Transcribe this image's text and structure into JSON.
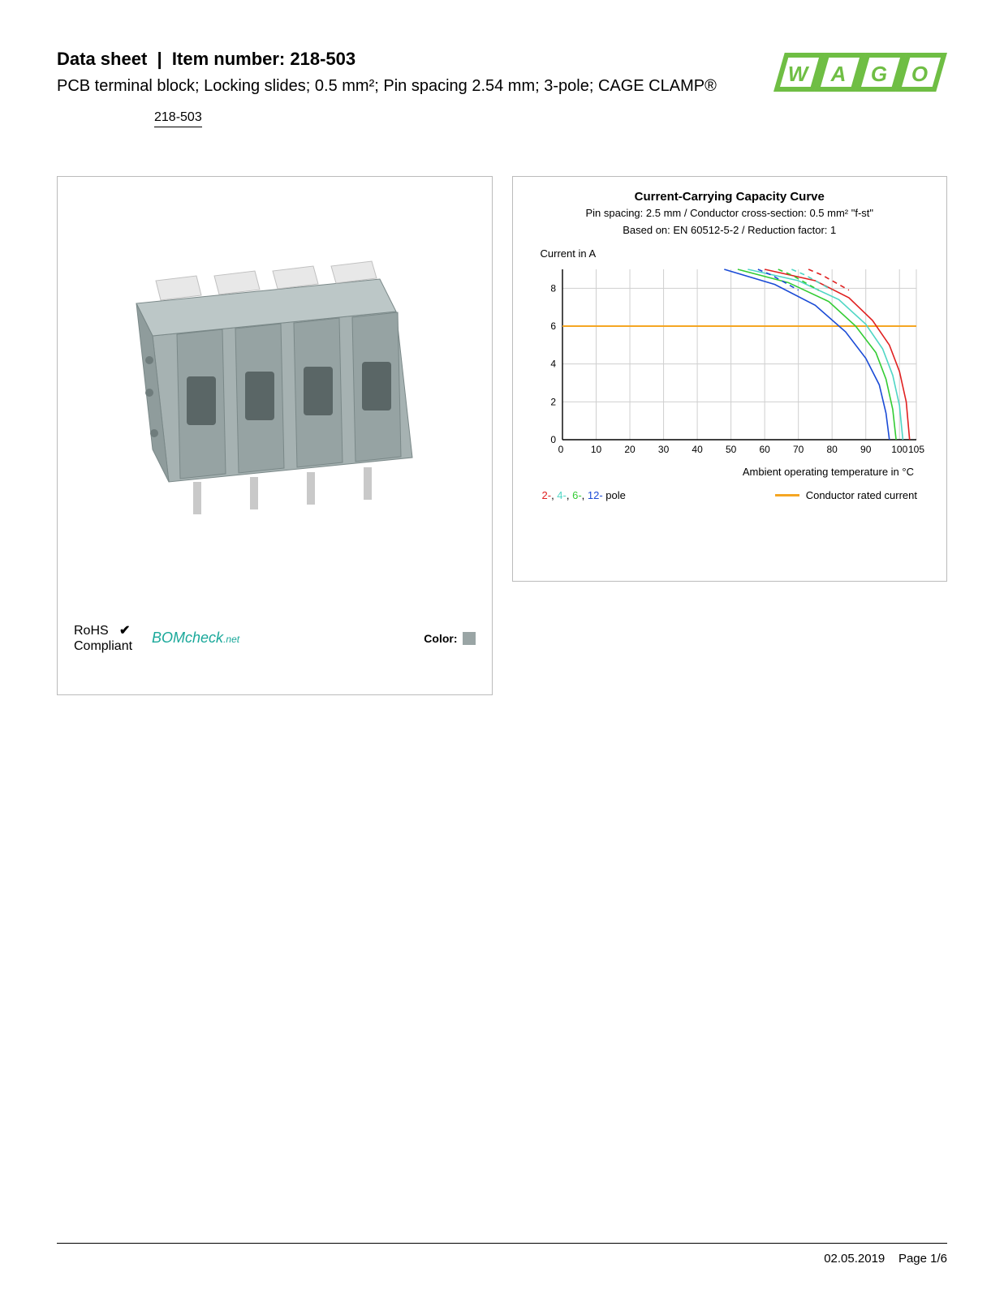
{
  "header": {
    "title_prefix": "Data sheet",
    "title_sep": "|",
    "title_item_label": "Item number:",
    "item_number": "218-503",
    "subtitle": "PCB terminal block; Locking slides; 0.5 mm²; Pin spacing 2.54 mm; 3-pole; CAGE CLAMP®",
    "item_code": "218-503"
  },
  "logo": {
    "text": "WAGO",
    "color": "#6fbe44",
    "accent": "#6fbe44"
  },
  "product_image": {
    "body_color": "#a6b2b2",
    "lever_color": "#e8e8e8",
    "pin_color": "#c9c9c9"
  },
  "compliance": {
    "rohs_line1": "RoHS",
    "rohs_line2": "Compliant",
    "check_color": "#000000",
    "bomcheck_main": "BOMcheck",
    "bomcheck_sub": ".net",
    "bomcheck_color": "#1aa89a",
    "color_label": "Color:",
    "color_swatch": "#9aa5a5"
  },
  "chart": {
    "title": "Current-Carrying Capacity Curve",
    "sub1": "Pin spacing: 2.5 mm / Conductor cross-section: 0.5 mm² \"f-st\"",
    "sub2": "Based on: EN 60512-5-2 / Reduction factor: 1",
    "ylabel": "Current in A",
    "xlabel": "Ambient operating temperature in °C",
    "xlim": [
      0,
      105
    ],
    "ylim": [
      0,
      9
    ],
    "xticks": [
      0,
      10,
      20,
      30,
      40,
      50,
      60,
      70,
      80,
      90,
      100,
      105
    ],
    "yticks": [
      0,
      2,
      4,
      6,
      8
    ],
    "grid_color": "#cfcfcf",
    "axis_color": "#000000",
    "rated_current": {
      "value": 6,
      "color": "#f5a623",
      "width": 2
    },
    "series": [
      {
        "name": "2-pole",
        "color": "#e02020",
        "width": 1.6,
        "points": [
          [
            60,
            9
          ],
          [
            75,
            8.4
          ],
          [
            85,
            7.5
          ],
          [
            92,
            6.3
          ],
          [
            97,
            5
          ],
          [
            100,
            3.6
          ],
          [
            102,
            2
          ],
          [
            103,
            0
          ]
        ],
        "dash": [
          [
            73,
            9
          ],
          [
            77,
            8.7
          ],
          [
            81,
            8.3
          ],
          [
            85,
            7.9
          ]
        ]
      },
      {
        "name": "4-pole",
        "color": "#4fd6c5",
        "width": 1.6,
        "points": [
          [
            55,
            9
          ],
          [
            70,
            8.4
          ],
          [
            82,
            7.4
          ],
          [
            90,
            6.1
          ],
          [
            95,
            4.8
          ],
          [
            98,
            3.4
          ],
          [
            100,
            1.8
          ],
          [
            101,
            0
          ]
        ],
        "dash": [
          [
            68,
            9
          ],
          [
            72,
            8.7
          ],
          [
            76,
            8.3
          ],
          [
            80,
            7.9
          ]
        ]
      },
      {
        "name": "6-pole",
        "color": "#33cc33",
        "width": 1.6,
        "points": [
          [
            52,
            9
          ],
          [
            67,
            8.3
          ],
          [
            79,
            7.3
          ],
          [
            87,
            6
          ],
          [
            93,
            4.6
          ],
          [
            96,
            3.2
          ],
          [
            98,
            1.6
          ],
          [
            99,
            0
          ]
        ],
        "dash": [
          [
            64,
            9
          ],
          [
            68,
            8.7
          ],
          [
            72,
            8.3
          ],
          [
            76,
            7.9
          ]
        ]
      },
      {
        "name": "12-pole",
        "color": "#1a4bd6",
        "width": 1.6,
        "points": [
          [
            48,
            9
          ],
          [
            63,
            8.2
          ],
          [
            75,
            7.1
          ],
          [
            84,
            5.7
          ],
          [
            90,
            4.3
          ],
          [
            94,
            2.9
          ],
          [
            96,
            1.4
          ],
          [
            97,
            0
          ]
        ],
        "dash": [
          [
            58,
            9
          ],
          [
            62,
            8.7
          ],
          [
            66,
            8.3
          ],
          [
            70,
            7.9
          ]
        ]
      }
    ],
    "legend_poles": [
      {
        "label": "2-",
        "color": "#e02020"
      },
      {
        "label": "4-",
        "color": "#4fd6c5"
      },
      {
        "label": "6-",
        "color": "#33cc33"
      },
      {
        "label": "12-",
        "color": "#1a4bd6"
      }
    ],
    "legend_pole_suffix": " pole",
    "legend_rated_label": "Conductor rated current",
    "legend_rated_color": "#f5a623"
  },
  "footer": {
    "date": "02.05.2019",
    "page": "Page 1/6"
  }
}
